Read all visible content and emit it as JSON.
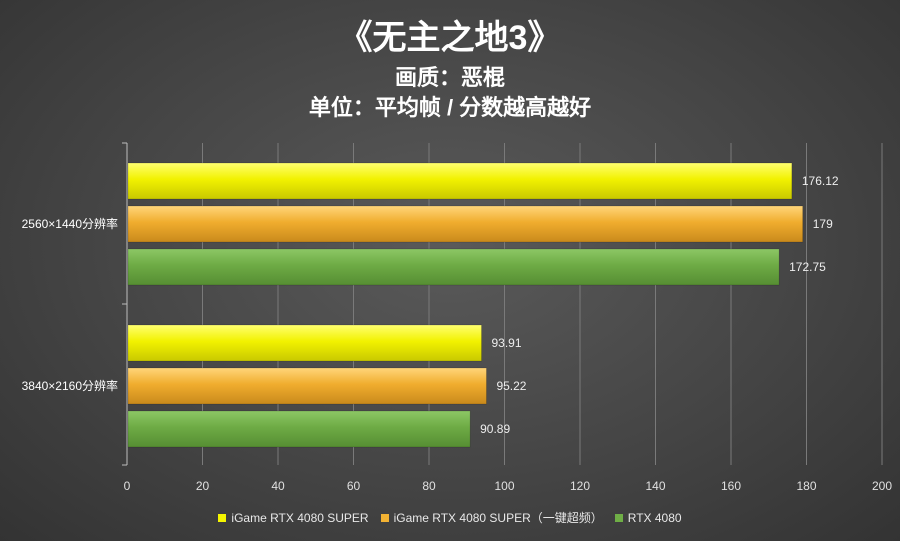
{
  "chart_data": {
    "type": "bar",
    "orientation": "horizontal",
    "title": "《无主之地3》",
    "subtitle": [
      "画质：恶棍",
      "单位：平均帧 / 分数越高越好"
    ],
    "categories": [
      "2560×1440分辨率",
      "3840×2160分辨率"
    ],
    "series": [
      {
        "name": "iGame RTX 4080 SUPER",
        "values": [
          176.12,
          93.91
        ],
        "color": "#f5f500"
      },
      {
        "name": "iGame RTX 4080 SUPER（一键超频）",
        "values": [
          179,
          95.22
        ],
        "color": "#f2b233"
      },
      {
        "name": "RTX 4080",
        "values": [
          172.75,
          90.89
        ],
        "color": "#6fae46"
      }
    ],
    "value_labels": [
      [
        "176.12",
        "93.91"
      ],
      [
        "179",
        "95.22"
      ],
      [
        "172.75",
        "90.89"
      ]
    ],
    "xlim": [
      0,
      200
    ],
    "xticks": [
      "0",
      "20",
      "40",
      "60",
      "80",
      "100",
      "120",
      "140",
      "160",
      "180",
      "200"
    ],
    "grid": "vertical",
    "legend": "bottom"
  }
}
